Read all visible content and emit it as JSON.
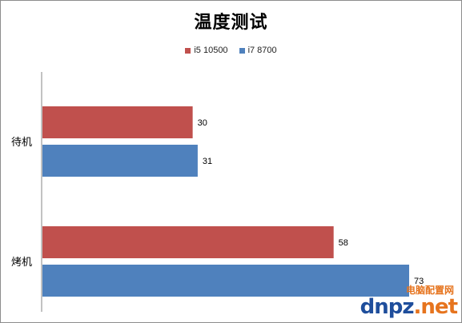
{
  "chart_data": {
    "type": "bar",
    "orientation": "horizontal",
    "title": "温度测试",
    "categories": [
      "待机",
      "烤机"
    ],
    "series": [
      {
        "name": "i5 10500",
        "color": "#c0504d",
        "values": [
          30,
          58
        ]
      },
      {
        "name": "i7 8700",
        "color": "#4f81bd",
        "values": [
          31,
          73
        ]
      }
    ],
    "xlim": [
      0,
      80
    ],
    "grid": false,
    "data_labels": true,
    "legend_position": "top"
  },
  "watermark": {
    "site_cn": "电脑配置网",
    "logo_a": "dnpz",
    "logo_b": ".net"
  }
}
